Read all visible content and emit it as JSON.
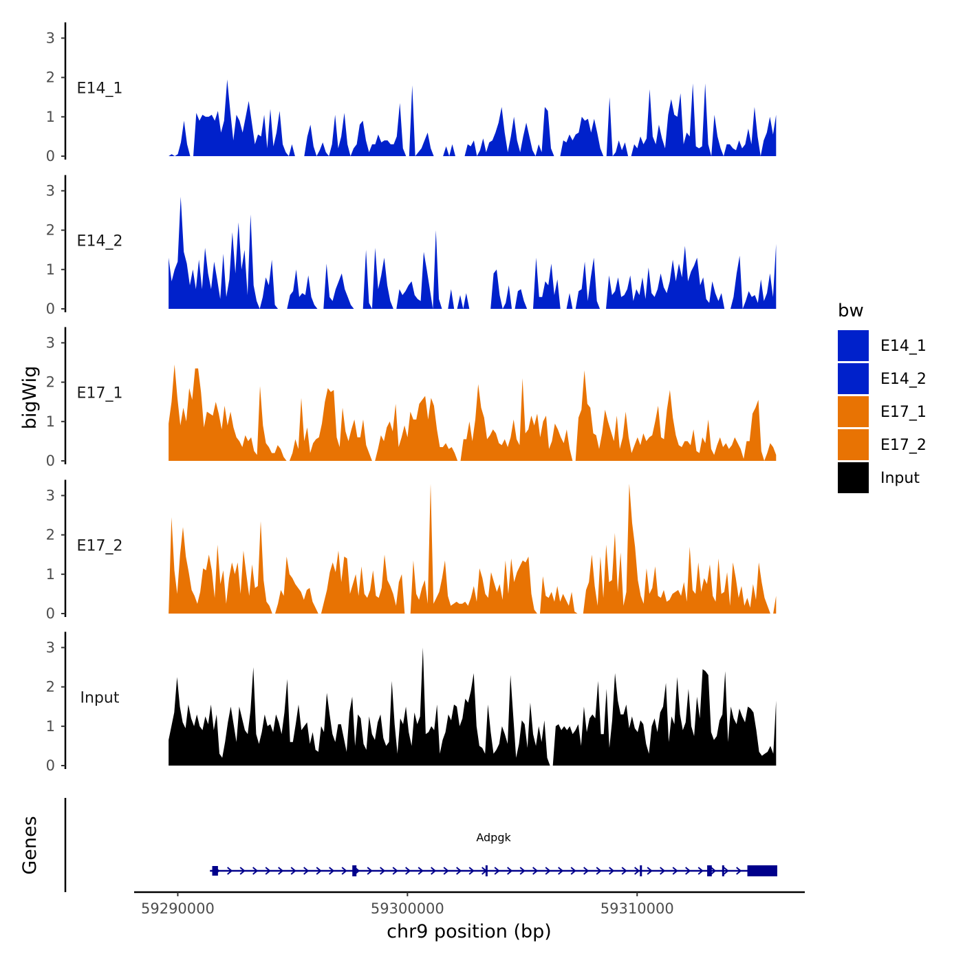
{
  "chart_data": {
    "type": "area",
    "y_axis_title": "bigWig",
    "x_axis_title": "chr9 position (bp)",
    "x_ticks": [
      59290000,
      59300000,
      59310000
    ],
    "x_tick_labels": [
      "59290000",
      "59300000",
      "59310000"
    ],
    "xlim": [
      59288100,
      59317300
    ],
    "data_xlim": [
      59289600,
      59316050
    ],
    "ylim": [
      0,
      3.4
    ],
    "y_ticks": [
      0,
      1,
      2,
      3
    ],
    "y_tick_labels": [
      "0",
      "1",
      "2",
      "3"
    ],
    "legend": {
      "title": "bw",
      "placement": "right",
      "entries": [
        {
          "label": "E14_1",
          "color": "#0021cb"
        },
        {
          "label": "E14_2",
          "color": "#0021cb"
        },
        {
          "label": "E17_1",
          "color": "#e87303"
        },
        {
          "label": "E17_2",
          "color": "#e87303"
        },
        {
          "label": "Input",
          "color": "#000000"
        }
      ]
    },
    "series": [
      {
        "name": "E14_1",
        "color": "#0021cb",
        "values": [
          0,
          0.05,
          0,
          0.05,
          0.35,
          0.9,
          0.3,
          0,
          0,
          1.1,
          0.9,
          1.05,
          1.0,
          1.0,
          1.05,
          0.9,
          1.15,
          0.6,
          0.9,
          1.95,
          1.15,
          0.4,
          1.05,
          0.9,
          0.6,
          1.0,
          1.4,
          0.85,
          0.3,
          0.55,
          0.5,
          1.05,
          0.2,
          1.2,
          0.25,
          0.6,
          1.15,
          0.3,
          0.1,
          0,
          0.3,
          0,
          0,
          0,
          0,
          0.5,
          0.8,
          0.25,
          0,
          0.15,
          0.35,
          0.1,
          0,
          0.3,
          1.05,
          0.2,
          0.5,
          1.1,
          0.3,
          0,
          0.2,
          0.3,
          0.8,
          0.9,
          0.4,
          0.1,
          0.3,
          0.3,
          0.55,
          0.35,
          0.4,
          0.4,
          0.3,
          0.3,
          0.5,
          1.35,
          0.2,
          0,
          0,
          1.8,
          0,
          0.1,
          0.2,
          0.4,
          0.6,
          0.2,
          0,
          0,
          0,
          0,
          0.25,
          0,
          0.3,
          0,
          0,
          0,
          0,
          0.3,
          0.25,
          0.4,
          0,
          0.15,
          0.45,
          0.1,
          0.35,
          0.4,
          0.6,
          0.85,
          1.25,
          0.6,
          0.1,
          0.5,
          1.0,
          0.4,
          0.1,
          0.5,
          0.85,
          0.5,
          0.15,
          0,
          0.3,
          0.1,
          1.25,
          1.15,
          0.2,
          0,
          0,
          0,
          0.4,
          0.35,
          0.55,
          0.4,
          0.55,
          0.6,
          1.0,
          0.9,
          0.95,
          0.6,
          0.95,
          0.6,
          0.2,
          0,
          0,
          1.5,
          0,
          0.1,
          0.4,
          0.15,
          0.35,
          0,
          0,
          0.3,
          0.2,
          0.5,
          0.3,
          0.45,
          1.7,
          0.5,
          0.3,
          0.8,
          0.45,
          0.2,
          1.05,
          1.45,
          1.05,
          1.0,
          1.6,
          0.3,
          0.6,
          0.5,
          1.85,
          0.25,
          0.2,
          0.25,
          1.85,
          0.3,
          0,
          1.05,
          0.5,
          0.2,
          0,
          0.3,
          0.3,
          0.2,
          0.15,
          0.4,
          0.2,
          0.3,
          0.7,
          0.3,
          1.25,
          0.5,
          0,
          0.4,
          0.6,
          1.0,
          0.55,
          1.05
        ]
      },
      {
        "name": "E14_2",
        "color": "#0021cb",
        "values": [
          1.3,
          0.7,
          1.0,
          1.2,
          2.85,
          1.45,
          1.15,
          0.6,
          1.0,
          0.5,
          1.25,
          0.5,
          1.55,
          0.9,
          0.5,
          1.2,
          0.75,
          0.25,
          1.4,
          0.3,
          0.75,
          1.95,
          0.9,
          2.2,
          1.0,
          1.5,
          0.35,
          2.4,
          0.6,
          0.2,
          0,
          0.3,
          0.8,
          0.6,
          1.25,
          0.1,
          0,
          0,
          0,
          0,
          0.35,
          0.45,
          1.0,
          0.3,
          0.4,
          0.35,
          0.85,
          0.3,
          0.1,
          0,
          0,
          0,
          1.15,
          0.3,
          0.2,
          0.5,
          0.7,
          0.9,
          0.5,
          0.3,
          0.1,
          0,
          0,
          0,
          0,
          1.5,
          0.15,
          0,
          1.55,
          0.5,
          0.85,
          1.3,
          0.6,
          0.2,
          0,
          0,
          0.5,
          0.35,
          0.45,
          0.6,
          0.7,
          0.35,
          0.25,
          0.2,
          1.45,
          1.0,
          0.5,
          0,
          2.0,
          0.25,
          0,
          0,
          0,
          0.5,
          0,
          0,
          0.35,
          0,
          0.4,
          0,
          0,
          0,
          0,
          0,
          0,
          0,
          0,
          0.9,
          1.0,
          0.35,
          0,
          0.15,
          0.6,
          0,
          0,
          0.45,
          0.5,
          0.2,
          0,
          0,
          0,
          1.3,
          0.3,
          0.3,
          0.7,
          0.6,
          1.15,
          0.35,
          0.75,
          0,
          0,
          0,
          0.4,
          0,
          0,
          0.45,
          0.5,
          1.2,
          0.2,
          0.8,
          1.3,
          0.2,
          0,
          0,
          0,
          0.85,
          0.35,
          0.45,
          0.8,
          0.3,
          0.35,
          0.5,
          0.85,
          0.2,
          0.5,
          0.35,
          0.8,
          0.25,
          1.05,
          0.4,
          0.3,
          0.5,
          0.9,
          0.55,
          0.4,
          0.7,
          1.25,
          0.7,
          1.15,
          0.8,
          1.6,
          0.7,
          0.95,
          1.1,
          1.3,
          0.6,
          0.8,
          0.25,
          0.15,
          0.7,
          0.4,
          0.2,
          0.4,
          0,
          0,
          0,
          0.3,
          0.9,
          1.35,
          0,
          0.2,
          0.45,
          0.3,
          0.35,
          0.15,
          0.75,
          0.2,
          0.4,
          0.9,
          0.3,
          1.65
        ]
      },
      {
        "name": "E17_1",
        "color": "#e87303",
        "values": [
          0.95,
          1.5,
          2.45,
          1.6,
          0.9,
          1.35,
          1.0,
          1.85,
          1.55,
          2.35,
          2.35,
          1.75,
          0.85,
          1.25,
          1.2,
          1.15,
          1.5,
          1.2,
          0.8,
          1.4,
          0.9,
          1.25,
          0.85,
          0.6,
          0.5,
          0.35,
          0.65,
          0.5,
          0.6,
          0.25,
          0.15,
          1.9,
          0.9,
          0.45,
          0.35,
          0.2,
          0.2,
          0.4,
          0.3,
          0.1,
          0,
          0,
          0.2,
          0.55,
          0.3,
          1.6,
          0.5,
          0.85,
          0.2,
          0.45,
          0.55,
          0.6,
          0.95,
          1.5,
          1.85,
          1.75,
          1.8,
          0.6,
          0.35,
          1.35,
          0.75,
          0.5,
          0.8,
          1.05,
          0.6,
          0.6,
          1.05,
          0.4,
          0.2,
          0,
          0,
          0.3,
          0.65,
          0.5,
          0.85,
          1.0,
          0.75,
          1.45,
          0.35,
          0.6,
          0.9,
          0.6,
          1.25,
          1.05,
          1.05,
          1.45,
          1.55,
          1.65,
          1.05,
          1.6,
          1.4,
          0.8,
          0.35,
          0.35,
          0.45,
          0.3,
          0.35,
          0.2,
          0,
          0,
          0.55,
          0.55,
          1.0,
          0.5,
          1.05,
          1.95,
          1.35,
          1.1,
          0.55,
          0.65,
          0.8,
          0.7,
          0.45,
          0.4,
          0.55,
          0.35,
          0.6,
          1.05,
          0.55,
          0.4,
          2.1,
          0.7,
          0.8,
          1.15,
          0.9,
          1.2,
          0.6,
          1.0,
          1.15,
          0.3,
          0.5,
          0.95,
          0.8,
          0.6,
          0.45,
          0.8,
          0.3,
          0,
          0,
          1.1,
          1.3,
          2.3,
          1.45,
          1.35,
          0.7,
          0.65,
          0.3,
          0.7,
          1.3,
          1.0,
          0.75,
          0.5,
          1.15,
          0.3,
          0.6,
          1.25,
          0.6,
          0.2,
          0.4,
          0.6,
          0.4,
          0.7,
          0.5,
          0.6,
          0.65,
          1.0,
          1.4,
          0.6,
          0.55,
          1.3,
          1.8,
          1.1,
          0.65,
          0.4,
          0.35,
          0.5,
          0.5,
          0.4,
          0.8,
          0.25,
          0.2,
          0.6,
          0.45,
          1.05,
          0.3,
          0.15,
          0.4,
          0.6,
          0.35,
          0.45,
          0.3,
          0.4,
          0.6,
          0.45,
          0.3,
          0.05,
          0.5,
          0.5,
          1.2,
          1.35,
          1.55,
          0.25,
          0,
          0.2,
          0.45,
          0.35,
          0.15
        ]
      },
      {
        "name": "E17_2",
        "color": "#e87303",
        "values": [
          0,
          2.45,
          1.1,
          0.5,
          1.5,
          2.2,
          1.45,
          1.05,
          0.6,
          0.45,
          0.25,
          0.55,
          1.15,
          1.1,
          1.5,
          1.1,
          0.4,
          1.75,
          0.75,
          1.1,
          0.25,
          0.9,
          1.3,
          1.0,
          1.3,
          0.5,
          1.6,
          1.0,
          0.45,
          1.25,
          0.65,
          0.7,
          2.35,
          0.85,
          0.3,
          0.2,
          0,
          0,
          0.25,
          0.6,
          0.45,
          1.45,
          1.0,
          0.9,
          0.75,
          0.65,
          0.55,
          0.35,
          0.6,
          0.65,
          0.3,
          0.15,
          0,
          0,
          0.3,
          0.6,
          1.05,
          1.3,
          1.05,
          1.6,
          0.8,
          1.45,
          1.4,
          0.5,
          0.75,
          1.0,
          0.45,
          1.2,
          0.5,
          0.4,
          0.6,
          1.1,
          0.45,
          0.4,
          0.65,
          1.5,
          0.85,
          0.7,
          0.5,
          0.2,
          0.8,
          1.0,
          0,
          0,
          0,
          1.35,
          0.5,
          0.35,
          0.65,
          0.85,
          0.25,
          3.3,
          0.25,
          0.4,
          0.55,
          0.9,
          1.35,
          0.45,
          0.2,
          0.25,
          0.3,
          0.25,
          0.25,
          0.3,
          0.2,
          0.4,
          0.7,
          0.3,
          1.15,
          0.9,
          0.5,
          0.4,
          1.05,
          0.8,
          0.55,
          0.75,
          0.35,
          1.35,
          0.5,
          1.4,
          0.8,
          1.05,
          1.2,
          1.35,
          1.3,
          1.45,
          0.5,
          0.1,
          0,
          0,
          0.95,
          0.45,
          0.4,
          0.55,
          0.3,
          0.7,
          0.3,
          0.5,
          0.35,
          0.2,
          0.55,
          0.05,
          0,
          0,
          0,
          0.6,
          0.8,
          1.5,
          0.7,
          0.2,
          1.45,
          0.4,
          1.75,
          0.8,
          0.85,
          2.05,
          0.55,
          1.55,
          0.2,
          0.55,
          3.3,
          2.3,
          1.7,
          0.85,
          0.45,
          0.25,
          1.15,
          0.5,
          0.65,
          1.2,
          0.45,
          0.4,
          0.6,
          0.3,
          0.35,
          0.5,
          0.55,
          0.6,
          0.45,
          0.8,
          0.3,
          1.7,
          0.6,
          0.5,
          1.3,
          0.55,
          0.9,
          0.75,
          1.25,
          0.45,
          0.3,
          1.4,
          0.5,
          0.55,
          1.05,
          0.2,
          1.3,
          0.9,
          0.4,
          0.7,
          0.2,
          0.4,
          0.15,
          0.75,
          0.35,
          1.3,
          0.8,
          0.4,
          0.2,
          0,
          0,
          0.45
        ]
      },
      {
        "name": "Input",
        "color": "#000000",
        "values": [
          0.65,
          1.0,
          1.35,
          2.25,
          1.5,
          1.1,
          0.95,
          1.55,
          1.2,
          1.0,
          1.3,
          1.0,
          0.9,
          1.25,
          1.05,
          1.55,
          0.9,
          1.3,
          0.3,
          0.2,
          0.6,
          1.1,
          1.5,
          1.05,
          0.6,
          1.5,
          1.2,
          0.9,
          0.8,
          1.4,
          2.5,
          0.8,
          0.55,
          0.85,
          1.3,
          1.0,
          1.05,
          0.85,
          1.3,
          1.1,
          0.8,
          1.35,
          2.2,
          0.6,
          0.6,
          1.05,
          1.55,
          0.9,
          1.0,
          1.1,
          0.55,
          0.85,
          0.4,
          0.35,
          1.0,
          0.85,
          1.85,
          1.3,
          0.8,
          0.6,
          1.05,
          1.05,
          0.7,
          0.35,
          1.35,
          1.75,
          0.5,
          1.3,
          1.2,
          0.55,
          0.4,
          1.25,
          0.8,
          0.65,
          1.1,
          1.3,
          0.7,
          0.5,
          0.6,
          2.15,
          1.05,
          0.3,
          1.2,
          1.05,
          1.5,
          0.85,
          0.5,
          1.35,
          1.05,
          1.25,
          3.0,
          0.8,
          0.85,
          1.0,
          0.9,
          1.55,
          0.3,
          0.65,
          0.85,
          1.3,
          1.15,
          1.55,
          1.5,
          1.0,
          1.2,
          1.7,
          1.6,
          1.9,
          2.35,
          1.0,
          0.5,
          0.45,
          0.3,
          1.55,
          0.85,
          0.3,
          0.4,
          0.55,
          1.0,
          0.8,
          0.55,
          2.3,
          1.25,
          0.2,
          0.55,
          1.15,
          1.05,
          0.45,
          1.6,
          0.8,
          0.5,
          1.0,
          0.6,
          1.15,
          0.2,
          0,
          0,
          1.0,
          1.05,
          0.9,
          1.0,
          0.9,
          1.0,
          0.8,
          0.9,
          1.05,
          0.5,
          1.5,
          0.85,
          1.2,
          1.3,
          1.2,
          2.15,
          0.8,
          0.8,
          1.95,
          0.45,
          1.15,
          2.35,
          1.65,
          1.3,
          1.3,
          1.55,
          0.95,
          1.25,
          0.95,
          0.85,
          1.15,
          1.05,
          0.55,
          0.3,
          1.0,
          1.2,
          0.85,
          1.35,
          1.5,
          2.1,
          0.6,
          1.25,
          1.05,
          2.25,
          1.3,
          0.9,
          1.1,
          1.95,
          1.0,
          0.75,
          1.75,
          1.2,
          2.45,
          2.4,
          2.3,
          0.85,
          0.65,
          0.75,
          1.15,
          1.3,
          2.4,
          0.6,
          1.5,
          1.2,
          1.05,
          1.45,
          1.25,
          1.1,
          1.5,
          1.45,
          1.35,
          0.9,
          0.35,
          0.25,
          0.3,
          0.35,
          0.5,
          0.3,
          1.65
        ]
      }
    ],
    "genes": {
      "title": "Genes",
      "name": "Adpgk",
      "strand": "+",
      "start": 59291400,
      "end": 59316100,
      "color": "#00008b",
      "exons": [
        {
          "start": 59291500,
          "end": 59291750,
          "kind": "utr"
        },
        {
          "start": 59297600,
          "end": 59297780,
          "kind": "cds"
        },
        {
          "start": 59303400,
          "end": 59303460,
          "kind": "cds"
        },
        {
          "start": 59310120,
          "end": 59310200,
          "kind": "cds"
        },
        {
          "start": 59313050,
          "end": 59313250,
          "kind": "cds"
        },
        {
          "start": 59313700,
          "end": 59313760,
          "kind": "cds"
        },
        {
          "start": 59314800,
          "end": 59316100,
          "kind": "cds"
        }
      ]
    }
  }
}
